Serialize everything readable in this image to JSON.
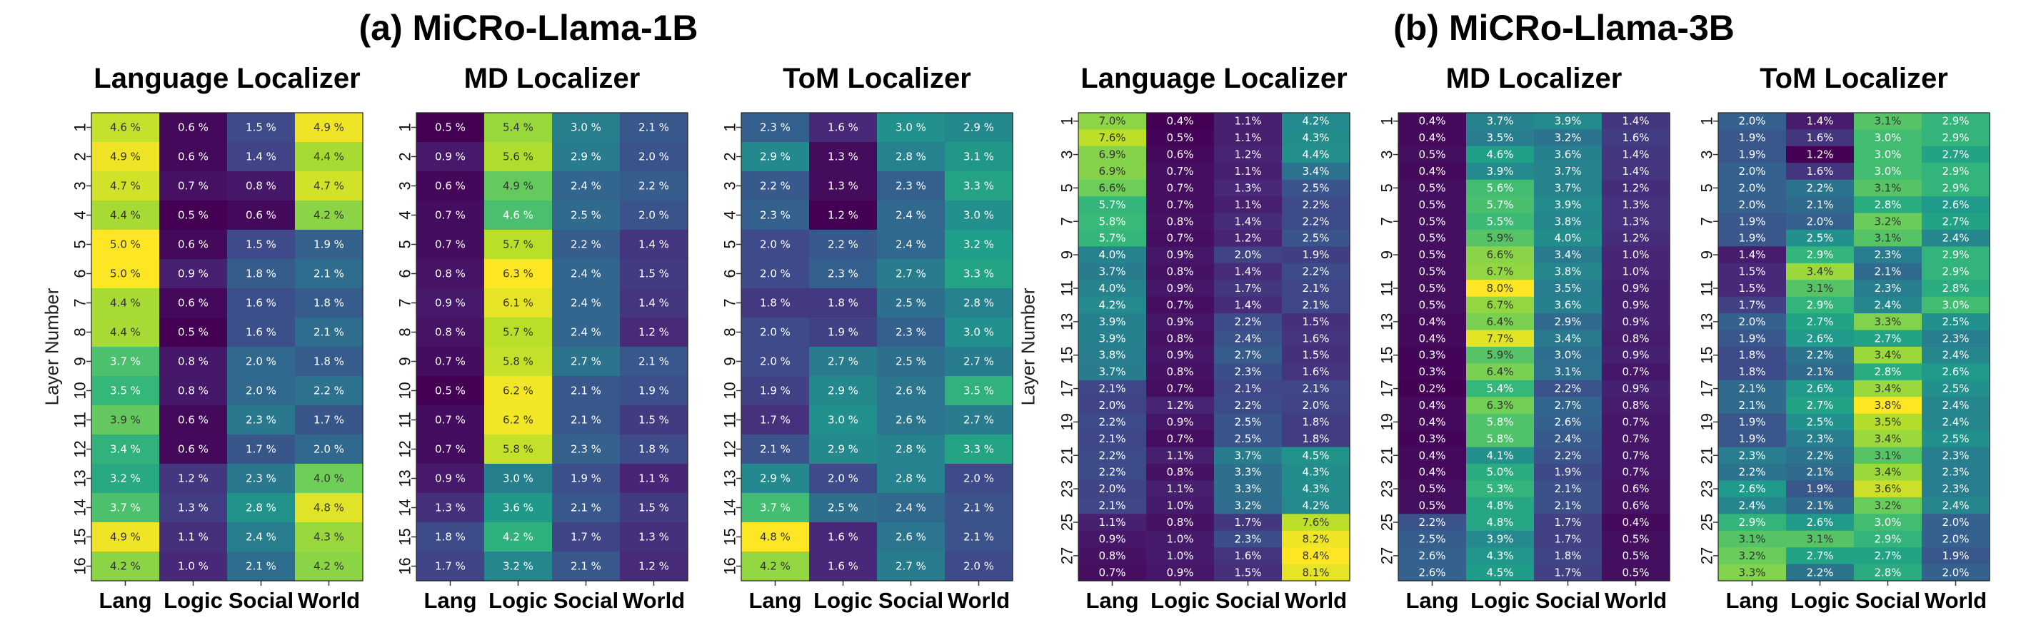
{
  "figure": {
    "group_titles": [
      "(a) MiCRo-Llama-1B",
      "(b) MiCRo-Llama-3B"
    ],
    "ylabel": "Layer Number"
  },
  "colormap": [
    "#440154",
    "#482878",
    "#3e4a89",
    "#31688e",
    "#26828e",
    "#1f9e89",
    "#35b779",
    "#6ece58",
    "#b5de2b",
    "#fde725"
  ],
  "chart_data": [
    {
      "type": "heatmap",
      "group": 0,
      "title": "Language Localizer",
      "categories": [
        "Lang",
        "Logic",
        "Social",
        "World"
      ],
      "rows": [
        1,
        2,
        3,
        4,
        5,
        6,
        7,
        8,
        9,
        10,
        11,
        12,
        13,
        14,
        15,
        16
      ],
      "row_tick_labels": [
        "1",
        "2",
        "3",
        "4",
        "5",
        "6",
        "7",
        "8",
        "9",
        "10",
        "11",
        "12",
        "13",
        "14",
        "15",
        "16"
      ],
      "ylabel": "Layer Number",
      "value_suffix": " %",
      "color_range": [
        0.5,
        5.0
      ],
      "values": [
        [
          4.6,
          0.6,
          1.5,
          4.9
        ],
        [
          4.9,
          0.6,
          1.4,
          4.4
        ],
        [
          4.7,
          0.7,
          0.8,
          4.7
        ],
        [
          4.4,
          0.5,
          0.6,
          4.2
        ],
        [
          5.0,
          0.6,
          1.5,
          1.9
        ],
        [
          5.0,
          0.9,
          1.8,
          2.1
        ],
        [
          4.4,
          0.6,
          1.6,
          1.8
        ],
        [
          4.4,
          0.5,
          1.6,
          2.1
        ],
        [
          3.7,
          0.8,
          2.0,
          1.8
        ],
        [
          3.5,
          0.8,
          2.0,
          2.2
        ],
        [
          3.9,
          0.6,
          2.3,
          1.7
        ],
        [
          3.4,
          0.6,
          1.7,
          2.0
        ],
        [
          3.2,
          1.2,
          2.3,
          4.0
        ],
        [
          3.7,
          1.3,
          2.8,
          4.8
        ],
        [
          4.9,
          1.1,
          2.4,
          4.3
        ],
        [
          4.2,
          1.0,
          2.1,
          4.2
        ]
      ]
    },
    {
      "type": "heatmap",
      "group": 0,
      "title": "MD Localizer",
      "categories": [
        "Lang",
        "Logic",
        "Social",
        "World"
      ],
      "rows": [
        1,
        2,
        3,
        4,
        5,
        6,
        7,
        8,
        9,
        10,
        11,
        12,
        13,
        14,
        15,
        16
      ],
      "row_tick_labels": [
        "1",
        "2",
        "3",
        "4",
        "5",
        "6",
        "7",
        "8",
        "9",
        "10",
        "11",
        "12",
        "13",
        "14",
        "15",
        "16"
      ],
      "ylabel": "",
      "value_suffix": " %",
      "color_range": [
        0.5,
        6.3
      ],
      "values": [
        [
          0.5,
          5.4,
          3.0,
          2.1
        ],
        [
          0.9,
          5.6,
          2.9,
          2.0
        ],
        [
          0.6,
          4.9,
          2.4,
          2.2
        ],
        [
          0.7,
          4.6,
          2.5,
          2.0
        ],
        [
          0.7,
          5.7,
          2.2,
          1.4
        ],
        [
          0.8,
          6.3,
          2.4,
          1.5
        ],
        [
          0.9,
          6.1,
          2.4,
          1.4
        ],
        [
          0.8,
          5.7,
          2.4,
          1.2
        ],
        [
          0.7,
          5.8,
          2.7,
          2.1
        ],
        [
          0.5,
          6.2,
          2.1,
          1.9
        ],
        [
          0.7,
          6.2,
          2.1,
          1.5
        ],
        [
          0.7,
          5.8,
          2.3,
          1.8
        ],
        [
          0.9,
          3.0,
          1.9,
          1.1
        ],
        [
          1.3,
          3.6,
          2.1,
          1.5
        ],
        [
          1.8,
          4.2,
          1.7,
          1.3
        ],
        [
          1.7,
          3.2,
          2.1,
          1.2
        ]
      ]
    },
    {
      "type": "heatmap",
      "group": 0,
      "title": "ToM Localizer",
      "categories": [
        "Lang",
        "Logic",
        "Social",
        "World"
      ],
      "rows": [
        1,
        2,
        3,
        4,
        5,
        6,
        7,
        8,
        9,
        10,
        11,
        12,
        13,
        14,
        15,
        16
      ],
      "row_tick_labels": [
        "1",
        "2",
        "3",
        "4",
        "5",
        "6",
        "7",
        "8",
        "9",
        "10",
        "11",
        "12",
        "13",
        "14",
        "15",
        "16"
      ],
      "ylabel": "",
      "value_suffix": " %",
      "color_range": [
        1.2,
        4.8
      ],
      "values": [
        [
          2.3,
          1.6,
          3.0,
          2.9
        ],
        [
          2.9,
          1.3,
          2.8,
          3.1
        ],
        [
          2.2,
          1.3,
          2.3,
          3.3
        ],
        [
          2.3,
          1.2,
          2.4,
          3.0
        ],
        [
          2.0,
          2.2,
          2.4,
          3.2
        ],
        [
          2.0,
          2.3,
          2.7,
          3.3
        ],
        [
          1.8,
          1.8,
          2.5,
          2.8
        ],
        [
          2.0,
          1.9,
          2.3,
          3.0
        ],
        [
          2.0,
          2.7,
          2.5,
          2.7
        ],
        [
          1.9,
          2.9,
          2.6,
          3.5
        ],
        [
          1.7,
          3.0,
          2.6,
          2.7
        ],
        [
          2.1,
          2.9,
          2.8,
          3.3
        ],
        [
          2.9,
          2.0,
          2.8,
          2.0
        ],
        [
          3.7,
          2.5,
          2.4,
          2.1
        ],
        [
          4.8,
          1.6,
          2.6,
          2.1
        ],
        [
          4.2,
          1.6,
          2.7,
          2.0
        ]
      ]
    },
    {
      "type": "heatmap",
      "group": 1,
      "title": "Language Localizer",
      "categories": [
        "Lang",
        "Logic",
        "Social",
        "World"
      ],
      "rows": [
        1,
        2,
        3,
        4,
        5,
        6,
        7,
        8,
        9,
        10,
        11,
        12,
        13,
        14,
        15,
        16,
        17,
        18,
        19,
        20,
        21,
        22,
        23,
        24,
        25,
        26,
        27,
        28
      ],
      "row_tick_labels": [
        "1",
        "",
        "3",
        "",
        "5",
        "",
        "7",
        "",
        "9",
        "",
        "11",
        "",
        "13",
        "",
        "15",
        "",
        "17",
        "",
        "19",
        "",
        "21",
        "",
        "23",
        "",
        "25",
        "",
        "27",
        ""
      ],
      "ylabel": "Layer Number",
      "value_suffix": "%",
      "color_range": [
        0.4,
        8.4
      ],
      "values": [
        [
          7.0,
          0.4,
          1.1,
          4.2
        ],
        [
          7.6,
          0.5,
          1.1,
          4.3
        ],
        [
          6.9,
          0.6,
          1.2,
          4.4
        ],
        [
          6.9,
          0.7,
          1.1,
          3.4
        ],
        [
          6.6,
          0.7,
          1.3,
          2.5
        ],
        [
          5.7,
          0.7,
          1.1,
          2.2
        ],
        [
          5.8,
          0.8,
          1.4,
          2.2
        ],
        [
          5.7,
          0.7,
          1.2,
          2.5
        ],
        [
          4.0,
          0.9,
          2.0,
          1.9
        ],
        [
          3.7,
          0.8,
          1.4,
          2.2
        ],
        [
          4.0,
          0.9,
          1.7,
          2.1
        ],
        [
          4.2,
          0.7,
          1.4,
          2.1
        ],
        [
          3.9,
          0.9,
          2.2,
          1.5
        ],
        [
          3.9,
          0.8,
          2.4,
          1.6
        ],
        [
          3.8,
          0.9,
          2.7,
          1.5
        ],
        [
          3.7,
          0.8,
          2.3,
          1.6
        ],
        [
          2.1,
          0.7,
          2.1,
          2.1
        ],
        [
          2.0,
          1.2,
          2.2,
          2.0
        ],
        [
          2.2,
          0.9,
          2.5,
          1.8
        ],
        [
          2.1,
          0.7,
          2.5,
          1.8
        ],
        [
          2.2,
          1.1,
          3.7,
          4.5
        ],
        [
          2.2,
          0.8,
          3.3,
          4.3
        ],
        [
          2.0,
          1.1,
          3.3,
          4.3
        ],
        [
          2.1,
          1.0,
          3.2,
          4.2
        ],
        [
          1.1,
          0.8,
          1.7,
          7.6
        ],
        [
          0.9,
          1.0,
          2.3,
          8.2
        ],
        [
          0.8,
          1.0,
          1.6,
          8.4
        ],
        [
          0.7,
          0.9,
          1.5,
          8.1
        ]
      ]
    },
    {
      "type": "heatmap",
      "group": 1,
      "title": "MD Localizer",
      "categories": [
        "Lang",
        "Logic",
        "Social",
        "World"
      ],
      "rows": [
        1,
        2,
        3,
        4,
        5,
        6,
        7,
        8,
        9,
        10,
        11,
        12,
        13,
        14,
        15,
        16,
        17,
        18,
        19,
        20,
        21,
        22,
        23,
        24,
        25,
        26,
        27,
        28
      ],
      "row_tick_labels": [
        "1",
        "",
        "3",
        "",
        "5",
        "",
        "7",
        "",
        "9",
        "",
        "11",
        "",
        "13",
        "",
        "15",
        "",
        "17",
        "",
        "19",
        "",
        "21",
        "",
        "23",
        "",
        "25",
        "",
        "27",
        ""
      ],
      "ylabel": "",
      "value_suffix": "%",
      "color_range": [
        0.2,
        8.0
      ],
      "values": [
        [
          0.4,
          3.7,
          3.9,
          1.4
        ],
        [
          0.4,
          3.5,
          3.2,
          1.6
        ],
        [
          0.5,
          4.6,
          3.6,
          1.4
        ],
        [
          0.4,
          3.9,
          3.7,
          1.4
        ],
        [
          0.5,
          5.6,
          3.7,
          1.2
        ],
        [
          0.5,
          5.7,
          3.9,
          1.3
        ],
        [
          0.5,
          5.5,
          3.8,
          1.3
        ],
        [
          0.5,
          5.9,
          4.0,
          1.2
        ],
        [
          0.5,
          6.6,
          3.4,
          1.0
        ],
        [
          0.5,
          6.7,
          3.8,
          1.0
        ],
        [
          0.5,
          8.0,
          3.5,
          0.9
        ],
        [
          0.5,
          6.7,
          3.6,
          0.9
        ],
        [
          0.4,
          6.4,
          2.9,
          0.9
        ],
        [
          0.4,
          7.7,
          3.4,
          0.8
        ],
        [
          0.3,
          5.9,
          3.0,
          0.9
        ],
        [
          0.3,
          6.4,
          3.1,
          0.7
        ],
        [
          0.2,
          5.4,
          2.2,
          0.9
        ],
        [
          0.4,
          6.3,
          2.7,
          0.8
        ],
        [
          0.4,
          5.8,
          2.6,
          0.7
        ],
        [
          0.3,
          5.8,
          2.4,
          0.7
        ],
        [
          0.4,
          4.1,
          2.2,
          0.7
        ],
        [
          0.4,
          5.0,
          1.9,
          0.7
        ],
        [
          0.5,
          5.3,
          2.1,
          0.6
        ],
        [
          0.5,
          4.8,
          2.1,
          0.6
        ],
        [
          2.2,
          4.8,
          1.7,
          0.4
        ],
        [
          2.5,
          3.9,
          1.7,
          0.5
        ],
        [
          2.6,
          4.3,
          1.8,
          0.5
        ],
        [
          2.6,
          4.5,
          1.7,
          0.5
        ]
      ]
    },
    {
      "type": "heatmap",
      "group": 1,
      "title": "ToM Localizer",
      "categories": [
        "Lang",
        "Logic",
        "Social",
        "World"
      ],
      "rows": [
        1,
        2,
        3,
        4,
        5,
        6,
        7,
        8,
        9,
        10,
        11,
        12,
        13,
        14,
        15,
        16,
        17,
        18,
        19,
        20,
        21,
        22,
        23,
        24,
        25,
        26,
        27,
        28
      ],
      "row_tick_labels": [
        "1",
        "",
        "3",
        "",
        "5",
        "",
        "7",
        "",
        "9",
        "",
        "11",
        "",
        "13",
        "",
        "15",
        "",
        "17",
        "",
        "19",
        "",
        "21",
        "",
        "23",
        "",
        "25",
        "",
        "27",
        ""
      ],
      "ylabel": "",
      "value_suffix": "%",
      "color_range": [
        1.2,
        3.8
      ],
      "values": [
        [
          2.0,
          1.4,
          3.1,
          2.9
        ],
        [
          1.9,
          1.6,
          3.0,
          2.9
        ],
        [
          1.9,
          1.2,
          3.0,
          2.7
        ],
        [
          2.0,
          1.6,
          3.0,
          2.9
        ],
        [
          2.0,
          2.2,
          3.1,
          2.9
        ],
        [
          2.0,
          2.1,
          2.8,
          2.6
        ],
        [
          1.9,
          2.0,
          3.2,
          2.7
        ],
        [
          1.9,
          2.5,
          3.1,
          2.4
        ],
        [
          1.4,
          2.9,
          2.3,
          2.9
        ],
        [
          1.5,
          3.4,
          2.1,
          2.9
        ],
        [
          1.5,
          3.1,
          2.3,
          2.8
        ],
        [
          1.7,
          2.9,
          2.4,
          3.0
        ],
        [
          2.0,
          2.7,
          3.3,
          2.5
        ],
        [
          1.9,
          2.6,
          2.7,
          2.3
        ],
        [
          1.8,
          2.2,
          3.4,
          2.4
        ],
        [
          1.8,
          2.1,
          2.8,
          2.6
        ],
        [
          2.1,
          2.6,
          3.4,
          2.5
        ],
        [
          2.1,
          2.7,
          3.8,
          2.4
        ],
        [
          1.9,
          2.5,
          3.5,
          2.4
        ],
        [
          1.9,
          2.3,
          3.4,
          2.5
        ],
        [
          2.3,
          2.2,
          3.1,
          2.3
        ],
        [
          2.2,
          2.1,
          3.4,
          2.3
        ],
        [
          2.6,
          1.9,
          3.6,
          2.3
        ],
        [
          2.4,
          2.1,
          3.2,
          2.4
        ],
        [
          2.9,
          2.6,
          3.0,
          2.0
        ],
        [
          3.1,
          3.1,
          2.9,
          2.0
        ],
        [
          3.2,
          2.7,
          2.7,
          1.9
        ],
        [
          3.3,
          2.2,
          2.8,
          2.0
        ]
      ]
    }
  ]
}
